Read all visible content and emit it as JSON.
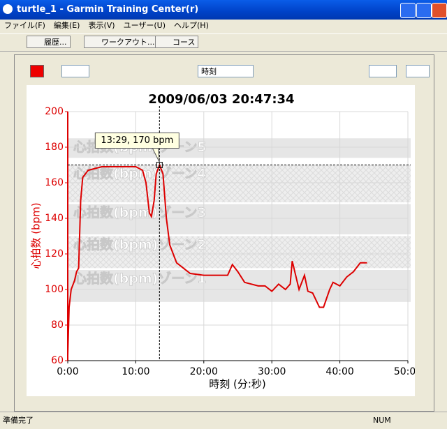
{
  "ui": {
    "window_title": "turtle_1 - Garmin Training Center(r)",
    "menu": [
      "ファイル(F)",
      "編集(E)",
      "表示(V)",
      "ユーザー(U)",
      "ヘルプ(H)"
    ],
    "toolbar": [
      "履歴...",
      "ワークアウト...",
      "コース"
    ],
    "x_select": "時刻",
    "status": "準備完了",
    "status_num": "NUM"
  },
  "chart_data": {
    "type": "line",
    "title": "2009/06/03 20:47:34",
    "x_label": "時刻 (分:秒)",
    "y_label": "心拍数 (bpm)",
    "color": "#dd0000",
    "x": [
      0,
      0.2,
      0.5,
      1,
      1.3,
      1.6,
      1.9,
      2.2,
      3,
      5,
      8,
      10,
      11,
      11.5,
      12,
      12.3,
      12.7,
      13,
      13.5,
      14,
      14.5,
      15,
      16,
      18,
      20,
      22,
      23.5,
      24.2,
      25,
      26,
      28,
      29,
      30,
      31,
      32,
      32.7,
      33,
      33.5,
      34,
      34.8,
      35.3,
      36,
      37,
      37.6,
      38.5,
      39,
      40,
      41,
      42,
      43,
      44
    ],
    "values": [
      63,
      90,
      100,
      105,
      110,
      112,
      150,
      163,
      167,
      169,
      169,
      169,
      167,
      160,
      143,
      141,
      150,
      165,
      170,
      165,
      140,
      125,
      115,
      109,
      108,
      108,
      108,
      114,
      110,
      104,
      102,
      102,
      99,
      103,
      100,
      103,
      116,
      108,
      100,
      108,
      99,
      98,
      90,
      90,
      100,
      104,
      102,
      107,
      110,
      115,
      115
    ],
    "xlim": [
      0,
      50
    ],
    "ylim": [
      60,
      200
    ],
    "xticks": [
      {
        "value": 0,
        "label": "0:00"
      },
      {
        "value": 10,
        "label": "10:00"
      },
      {
        "value": 20,
        "label": "20:00"
      },
      {
        "value": 30,
        "label": "30:00"
      },
      {
        "value": 40,
        "label": "40:00"
      },
      {
        "value": 50,
        "label": "50:00"
      }
    ],
    "yticks": [
      60,
      80,
      100,
      120,
      140,
      160,
      180,
      200
    ],
    "grid": true,
    "zones": [
      {
        "label": "心拍数(bpm)ゾーン5",
        "range": [
          174,
          185
        ],
        "style": "solid"
      },
      {
        "label": "心拍数(bpm)ゾーン4",
        "range": [
          149,
          170
        ],
        "style": "hatch"
      },
      {
        "label": "心拍数(bpm)ゾーン3",
        "range": [
          131,
          148
        ],
        "style": "solid"
      },
      {
        "label": "心拍数(bpm)ゾーン2",
        "range": [
          112,
          130
        ],
        "style": "hatch"
      },
      {
        "label": "心拍数(bpm)ゾーン1",
        "range": [
          93,
          111
        ],
        "style": "solid"
      }
    ],
    "crosshair": {
      "x": 13.4833,
      "y": 170,
      "label": "13:29, 170 bpm"
    }
  }
}
